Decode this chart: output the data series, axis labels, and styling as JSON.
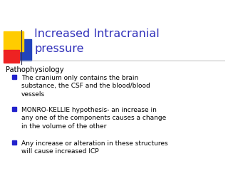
{
  "title_line1": "Increased Intracranial",
  "title_line2": "pressure",
  "title_color": "#3333bb",
  "background_color": "#ffffff",
  "subtitle": "Pathophysiology",
  "text_color": "#000000",
  "bullet_color": "#2222cc",
  "bullet_points": [
    "The cranium only contains the brain\nsubstance, the CSF and the blood/blood\nvessels",
    "MONRO-KELLIE hypothesis- an increase in\nany one of the components causes a change\nin the volume of the other",
    "Any increase or alteration in these structures\nwill cause increased ICP"
  ],
  "divider_color": "#bbbbbb",
  "square_yellow": "#ffcc00",
  "square_red": "#ee2222",
  "square_blue": "#2244bb",
  "title_fontsize": 11.5,
  "subtitle_fontsize": 7.2,
  "bullet_fontsize": 6.5
}
